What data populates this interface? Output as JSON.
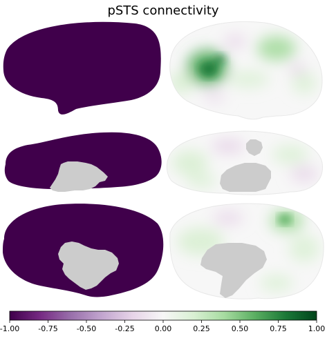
{
  "chart_data": {
    "type": "heatmap",
    "title": "pSTS connectivity",
    "colorbar": {
      "colormap": "PRGn",
      "range": [
        -1.0,
        1.0
      ],
      "ticks": [
        "-1.00",
        "-0.75",
        "-0.50",
        "-0.25",
        "0.00",
        "0.25",
        "0.50",
        "0.75",
        "1.00"
      ],
      "tick_values": [
        -1.0,
        -0.75,
        -0.5,
        -0.25,
        0.0,
        0.25,
        0.5,
        0.75,
        1.0
      ]
    },
    "rows": 3,
    "panels": [
      {
        "row": 1,
        "side": "left",
        "content": "seed mask",
        "value": -1.0
      },
      {
        "row": 1,
        "side": "right",
        "content": "connectivity map"
      },
      {
        "row": 2,
        "side": "left",
        "content": "seed mask",
        "value": -1.0
      },
      {
        "row": 2,
        "side": "right",
        "content": "connectivity map"
      },
      {
        "row": 3,
        "side": "left",
        "content": "seed mask",
        "value": -1.0
      },
      {
        "row": 3,
        "side": "right",
        "content": "connectivity map"
      }
    ],
    "colors": {
      "min": "#40004b",
      "max": "#00441b",
      "center": "#f7f7f7",
      "masked": "#cccccc"
    }
  }
}
